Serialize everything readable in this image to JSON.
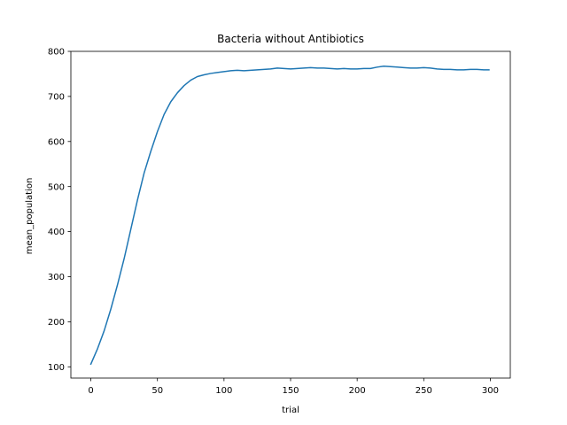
{
  "chart_data": {
    "type": "line",
    "title": "Bacteria without Antibiotics",
    "xlabel": "trial",
    "ylabel": "mean_population",
    "xlim": [
      -15,
      315
    ],
    "ylim": [
      75,
      800
    ],
    "xticks": [
      0,
      50,
      100,
      150,
      200,
      250,
      300
    ],
    "yticks": [
      100,
      200,
      300,
      400,
      500,
      600,
      700,
      800
    ],
    "grid": false,
    "legend": "none",
    "series": [
      {
        "color": "#1f77b4",
        "x": [
          0,
          5,
          10,
          15,
          20,
          25,
          30,
          35,
          40,
          45,
          50,
          55,
          60,
          65,
          70,
          75,
          80,
          85,
          90,
          95,
          100,
          105,
          110,
          115,
          120,
          125,
          130,
          135,
          140,
          145,
          150,
          155,
          160,
          165,
          170,
          175,
          180,
          185,
          190,
          195,
          200,
          205,
          210,
          215,
          220,
          225,
          230,
          235,
          240,
          245,
          250,
          255,
          260,
          265,
          270,
          275,
          280,
          285,
          290,
          295,
          299
        ],
        "y": [
          106,
          140,
          180,
          228,
          282,
          340,
          405,
          470,
          530,
          578,
          622,
          660,
          688,
          708,
          724,
          736,
          744,
          748,
          751,
          753,
          755,
          757,
          758,
          757,
          758,
          759,
          760,
          761,
          763,
          762,
          761,
          762,
          763,
          764,
          763,
          763,
          762,
          761,
          762,
          761,
          761,
          762,
          762,
          765,
          767,
          766,
          765,
          764,
          763,
          763,
          764,
          763,
          761,
          760,
          760,
          759,
          759,
          760,
          760,
          759,
          759
        ]
      }
    ]
  }
}
